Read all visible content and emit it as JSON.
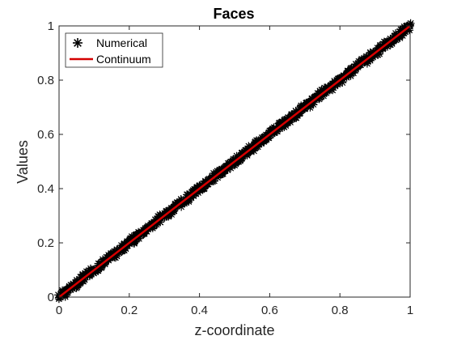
{
  "chart_data": {
    "type": "scatter",
    "title": "Faces",
    "xlabel": "z-coordinate",
    "ylabel": "Values",
    "xlim": [
      0,
      1
    ],
    "ylim": [
      0,
      1
    ],
    "xticks": [
      "0",
      "0.2",
      "0.4",
      "0.6",
      "0.8",
      "1"
    ],
    "yticks": [
      "0",
      "0.2",
      "0.4",
      "0.6",
      "0.8",
      "1"
    ],
    "grid": false,
    "legend_position": "top-left",
    "series": [
      {
        "name": "Numerical",
        "type": "scatter",
        "marker": "asterisk",
        "color": "#000000",
        "x": [
          0,
          0.05,
          0.1,
          0.15,
          0.2,
          0.25,
          0.3,
          0.35,
          0.4,
          0.45,
          0.5,
          0.55,
          0.6,
          0.65,
          0.7,
          0.75,
          0.8,
          0.85,
          0.9,
          0.95,
          1
        ],
        "y": [
          0,
          0.05,
          0.1,
          0.15,
          0.2,
          0.25,
          0.3,
          0.35,
          0.4,
          0.45,
          0.5,
          0.55,
          0.6,
          0.65,
          0.7,
          0.75,
          0.8,
          0.85,
          0.9,
          0.95,
          1
        ]
      },
      {
        "name": "Continuum",
        "type": "line",
        "color": "#d40000",
        "x": [
          0,
          1
        ],
        "y": [
          0,
          1
        ]
      }
    ]
  }
}
